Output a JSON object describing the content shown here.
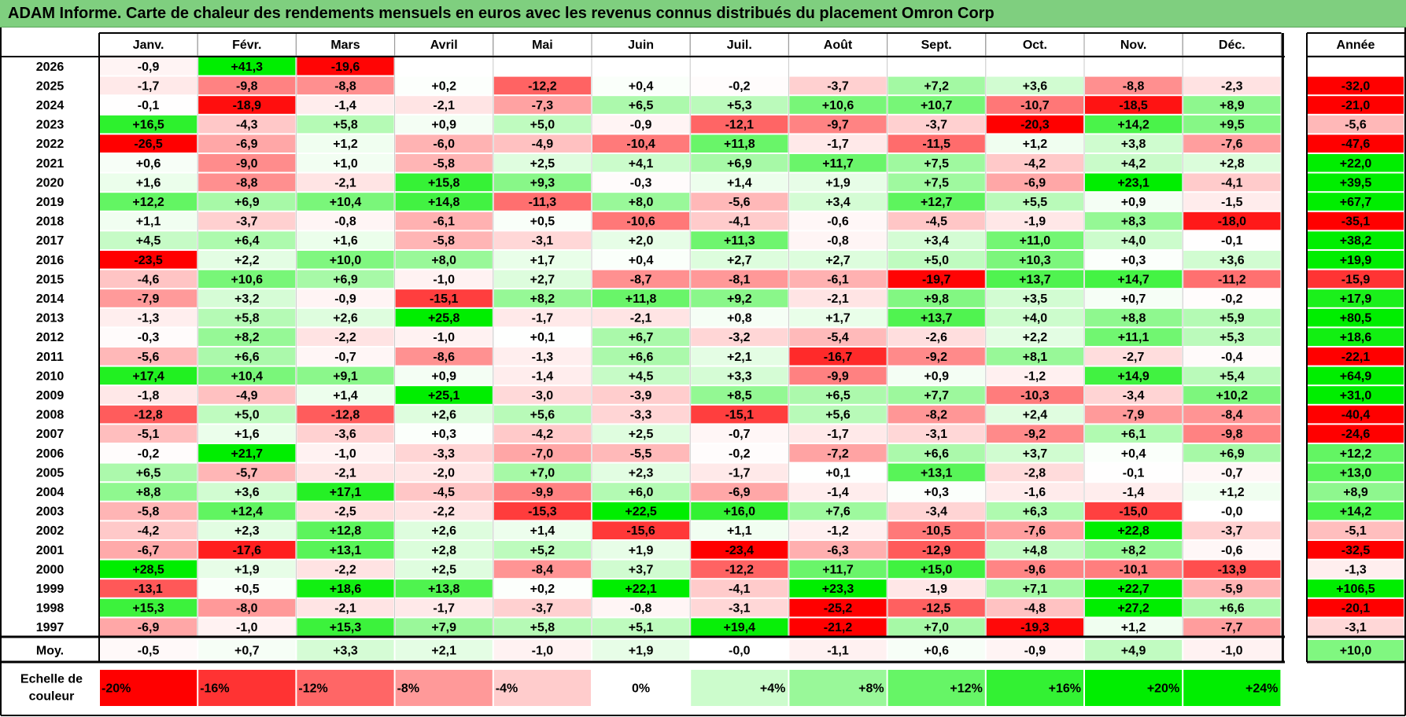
{
  "title": "ADAM Informe. Carte de chaleur des rendements mensuels en euros avec les revenus connus distribués du placement Omron Corp",
  "colors": {
    "title_bg": "#7fcf7f",
    "neg_max": "#ff0000",
    "neutral": "#ffffff",
    "pos_max": "#00ee00"
  },
  "chart_data": {
    "type": "heatmap",
    "months": [
      "Janv.",
      "Févr.",
      "Mars",
      "Avril",
      "Mai",
      "Juin",
      "Juil.",
      "Août",
      "Sept.",
      "Oct.",
      "Nov.",
      "Déc."
    ],
    "year_column_header": "Année",
    "years": [
      "2026",
      "2025",
      "2024",
      "2023",
      "2022",
      "2021",
      "2020",
      "2019",
      "2018",
      "2017",
      "2016",
      "2015",
      "2014",
      "2013",
      "2012",
      "2011",
      "2010",
      "2009",
      "2008",
      "2007",
      "2006",
      "2005",
      "2004",
      "2003",
      "2002",
      "2001",
      "2000",
      "1999",
      "1998",
      "1997"
    ],
    "values": [
      [
        "-0,9",
        "+41,3",
        "-19,6",
        "",
        "",
        "",
        "",
        "",
        "",
        "",
        "",
        ""
      ],
      [
        "-1,7",
        "-9,8",
        "-8,8",
        "+0,2",
        "-12,2",
        "+0,4",
        "-0,2",
        "-3,7",
        "+7,2",
        "+3,6",
        "-8,8",
        "-2,3"
      ],
      [
        "-0,1",
        "-18,9",
        "-1,4",
        "-2,1",
        "-7,3",
        "+6,5",
        "+5,3",
        "+10,6",
        "+10,7",
        "-10,7",
        "-18,5",
        "+8,9"
      ],
      [
        "+16,5",
        "-4,3",
        "+5,8",
        "+0,9",
        "+5,0",
        "-0,9",
        "-12,1",
        "-9,7",
        "-3,7",
        "-20,3",
        "+14,2",
        "+9,5"
      ],
      [
        "-26,5",
        "-6,9",
        "+1,2",
        "-6,0",
        "-4,9",
        "-10,4",
        "+11,8",
        "-1,7",
        "-11,5",
        "+1,2",
        "+3,8",
        "-7,6"
      ],
      [
        "+0,6",
        "-9,0",
        "+1,0",
        "-5,8",
        "+2,5",
        "+4,1",
        "+6,9",
        "+11,7",
        "+7,5",
        "-4,2",
        "+4,2",
        "+2,8"
      ],
      [
        "+1,6",
        "-8,8",
        "-2,1",
        "+15,8",
        "+9,3",
        "-0,3",
        "+1,4",
        "+1,9",
        "+7,5",
        "-6,9",
        "+23,1",
        "-4,1"
      ],
      [
        "+12,2",
        "+6,9",
        "+10,4",
        "+14,8",
        "-11,3",
        "+8,0",
        "-5,6",
        "+3,4",
        "+12,7",
        "+5,5",
        "+0,9",
        "-1,5"
      ],
      [
        "+1,1",
        "-3,7",
        "-0,8",
        "-6,1",
        "+0,5",
        "-10,6",
        "-4,1",
        "-0,6",
        "-4,5",
        "-1,9",
        "+8,3",
        "-18,0"
      ],
      [
        "+4,5",
        "+6,4",
        "+1,6",
        "-5,8",
        "-3,1",
        "+2,0",
        "+11,3",
        "-0,8",
        "+3,4",
        "+11,0",
        "+4,0",
        "-0,1"
      ],
      [
        "-23,5",
        "+2,2",
        "+10,0",
        "+8,0",
        "+1,7",
        "+0,4",
        "+2,7",
        "+2,7",
        "+5,0",
        "+10,3",
        "+0,3",
        "+3,6"
      ],
      [
        "-4,6",
        "+10,6",
        "+6,9",
        "-1,0",
        "+2,7",
        "-8,7",
        "-8,1",
        "-6,1",
        "-19,7",
        "+13,7",
        "+14,7",
        "-11,2"
      ],
      [
        "-7,9",
        "+3,2",
        "-0,9",
        "-15,1",
        "+8,2",
        "+11,8",
        "+9,2",
        "-2,1",
        "+9,8",
        "+3,5",
        "+0,7",
        "-0,2"
      ],
      [
        "-1,3",
        "+5,8",
        "+2,6",
        "+25,8",
        "-1,7",
        "-2,1",
        "+0,8",
        "+1,7",
        "+13,7",
        "+4,0",
        "+8,8",
        "+5,9"
      ],
      [
        "-0,3",
        "+8,2",
        "-2,2",
        "-1,0",
        "+0,1",
        "+6,7",
        "-3,2",
        "-5,4",
        "-2,6",
        "+2,2",
        "+11,1",
        "+5,3"
      ],
      [
        "-5,6",
        "+6,6",
        "-0,7",
        "-8,6",
        "-1,3",
        "+6,6",
        "+2,1",
        "-16,7",
        "-9,2",
        "+8,1",
        "-2,7",
        "-0,4"
      ],
      [
        "+17,4",
        "+10,4",
        "+9,1",
        "+0,9",
        "-1,4",
        "+4,5",
        "+3,3",
        "-9,9",
        "+0,9",
        "-1,2",
        "+14,9",
        "+5,4"
      ],
      [
        "-1,8",
        "-4,9",
        "+1,4",
        "+25,1",
        "-3,0",
        "-3,9",
        "+8,5",
        "+6,5",
        "+7,7",
        "-10,3",
        "-3,4",
        "+10,2"
      ],
      [
        "-12,8",
        "+5,0",
        "-12,8",
        "+2,6",
        "+5,6",
        "-3,3",
        "-15,1",
        "+5,6",
        "-8,2",
        "+2,4",
        "-7,9",
        "-8,4"
      ],
      [
        "-5,1",
        "+1,6",
        "-3,6",
        "+0,3",
        "-4,2",
        "+2,5",
        "-0,7",
        "-1,7",
        "-3,1",
        "-9,2",
        "+6,1",
        "-9,8"
      ],
      [
        "-0,2",
        "+21,7",
        "-1,0",
        "-3,3",
        "-7,0",
        "-5,5",
        "-0,2",
        "-7,2",
        "+6,6",
        "+3,7",
        "+0,4",
        "+6,9"
      ],
      [
        "+6,5",
        "-5,7",
        "-2,1",
        "-2,0",
        "+7,0",
        "+2,3",
        "-1,7",
        "+0,1",
        "+13,1",
        "-2,8",
        "-0,1",
        "-0,7"
      ],
      [
        "+8,8",
        "+3,6",
        "+17,1",
        "-4,5",
        "-9,9",
        "+6,0",
        "-6,9",
        "-1,4",
        "+0,3",
        "-1,6",
        "-1,4",
        "+1,2"
      ],
      [
        "-5,8",
        "+12,4",
        "-2,5",
        "-2,2",
        "-15,3",
        "+22,5",
        "+16,0",
        "+7,6",
        "-3,4",
        "+6,3",
        "-15,0",
        "-0,0"
      ],
      [
        "-4,2",
        "+2,3",
        "+12,8",
        "+2,6",
        "+1,4",
        "-15,6",
        "+1,1",
        "-1,2",
        "-10,5",
        "-7,6",
        "+22,8",
        "-3,7"
      ],
      [
        "-6,7",
        "-17,6",
        "+13,1",
        "+2,8",
        "+5,2",
        "+1,9",
        "-23,4",
        "-6,3",
        "-12,9",
        "+4,8",
        "+8,2",
        "-0,6"
      ],
      [
        "+28,5",
        "+1,9",
        "-2,2",
        "+2,5",
        "-8,4",
        "+3,7",
        "-12,2",
        "+11,7",
        "+15,0",
        "-9,6",
        "-10,1",
        "-13,9"
      ],
      [
        "-13,1",
        "+0,5",
        "+18,6",
        "+13,8",
        "+0,2",
        "+22,1",
        "-4,1",
        "+23,3",
        "-1,9",
        "+7,1",
        "+22,7",
        "-5,9"
      ],
      [
        "+15,3",
        "-8,0",
        "-2,1",
        "-1,7",
        "-3,7",
        "-0,8",
        "-3,1",
        "-25,2",
        "-12,5",
        "-4,8",
        "+27,2",
        "+6,6"
      ],
      [
        "-6,9",
        "-1,0",
        "+15,3",
        "+7,9",
        "+5,8",
        "+5,1",
        "+19,4",
        "-21,2",
        "+7,0",
        "-19,3",
        "+1,2",
        "-7,7"
      ]
    ],
    "annual": [
      "",
      "-32,0",
      "-21,0",
      "-5,6",
      "-47,6",
      "+22,0",
      "+39,5",
      "+67,7",
      "-35,1",
      "+38,2",
      "+19,9",
      "-15,9",
      "+17,9",
      "+80,5",
      "+18,6",
      "-22,1",
      "+64,9",
      "+31,0",
      "-40,4",
      "-24,6",
      "+12,2",
      "+13,0",
      "+8,9",
      "+14,2",
      "-5,1",
      "-32,5",
      "-1,3",
      "+106,5",
      "-20,1",
      "-3,1"
    ],
    "average_row": {
      "label": "Moy.",
      "values": [
        "-0,5",
        "+0,7",
        "+3,3",
        "+2,1",
        "-1,0",
        "+1,9",
        "-0,0",
        "-1,1",
        "+0,6",
        "-0,9",
        "+4,9",
        "-1,0"
      ],
      "annual": "+10,0"
    },
    "color_scale": {
      "label_line1": "Echelle de",
      "label_line2": "couleur",
      "stops": [
        "-20%",
        "-16%",
        "-12%",
        "-8%",
        "-4%",
        "0%",
        "+4%",
        "+8%",
        "+12%",
        "+16%",
        "+20%",
        "+24%"
      ],
      "values": [
        -20,
        -16,
        -12,
        -8,
        -4,
        0,
        4,
        8,
        12,
        16,
        20,
        24
      ]
    },
    "color_range": [
      -20,
      20
    ]
  }
}
